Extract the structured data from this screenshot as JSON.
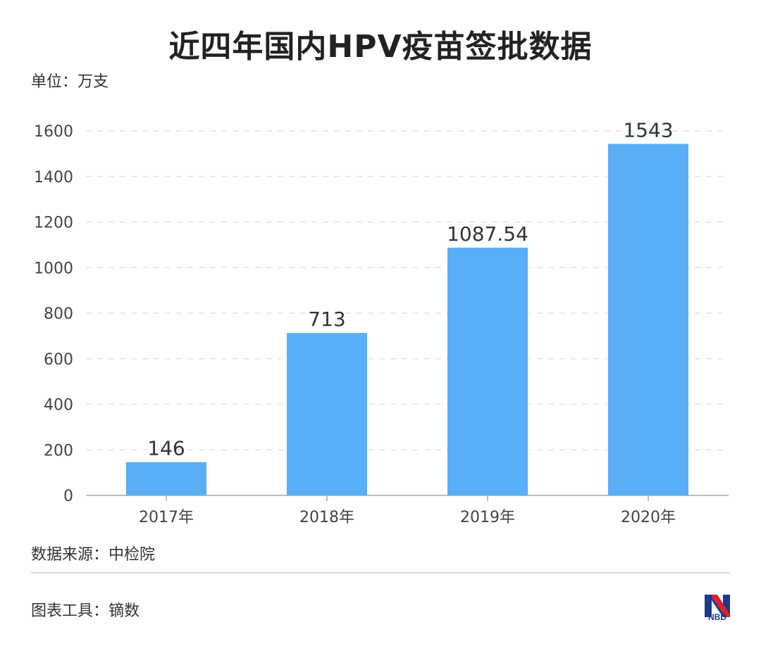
{
  "header": {
    "title": "近四年国内HPV疫苗签批数据",
    "unit": "单位：万支"
  },
  "footer": {
    "source": "数据来源：中检院",
    "tool": "图表工具：镝数",
    "logo_text": "NBD"
  },
  "colors": {
    "bar": "#5aaef5",
    "grid": "#e2e2e2",
    "axis": "#bfbfbf",
    "logo_red": "#d9232e",
    "logo_blue": "#1b3a8c"
  },
  "chart_data": {
    "type": "bar",
    "categories": [
      "2017年",
      "2018年",
      "2019年",
      "2020年"
    ],
    "values": [
      146,
      713,
      1087.54,
      1543
    ],
    "value_labels": [
      "146",
      "713",
      "1087.54",
      "1543"
    ],
    "title": "近四年国内HPV疫苗签批数据",
    "ylabel": "单位：万支",
    "ylim": [
      0,
      1600
    ],
    "yticks": [
      0,
      200,
      400,
      600,
      800,
      1000,
      1200,
      1400,
      1600
    ],
    "grid": true,
    "legend": "none"
  }
}
